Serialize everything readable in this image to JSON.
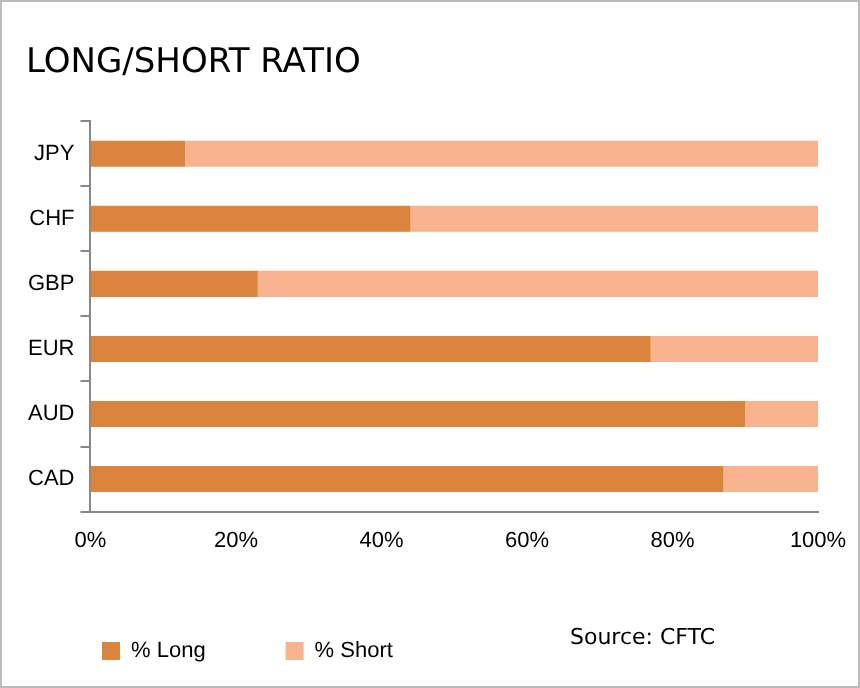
{
  "chart_data": {
    "type": "bar",
    "orientation": "horizontal",
    "stacked": true,
    "title": "LONG/SHORT RATIO",
    "categories": [
      "JPY",
      "CHF",
      "GBP",
      "EUR",
      "AUD",
      "CAD"
    ],
    "series": [
      {
        "name": "% Long",
        "color": "#db843d",
        "values": [
          13,
          44,
          23,
          77,
          90,
          87
        ]
      },
      {
        "name": "% Short",
        "color": "#f7b38d",
        "values": [
          87,
          56,
          77,
          23,
          10,
          13
        ]
      }
    ],
    "xlim": [
      0,
      100
    ],
    "xticks": [
      {
        "value": 0,
        "label": "0%"
      },
      {
        "value": 20,
        "label": "20%"
      },
      {
        "value": 40,
        "label": "40%"
      },
      {
        "value": 60,
        "label": "60%"
      },
      {
        "value": 80,
        "label": "80%"
      },
      {
        "value": 100,
        "label": "100%"
      }
    ],
    "grid": false,
    "legend": "bottom",
    "annotations": [
      "Source: CFTC"
    ]
  }
}
